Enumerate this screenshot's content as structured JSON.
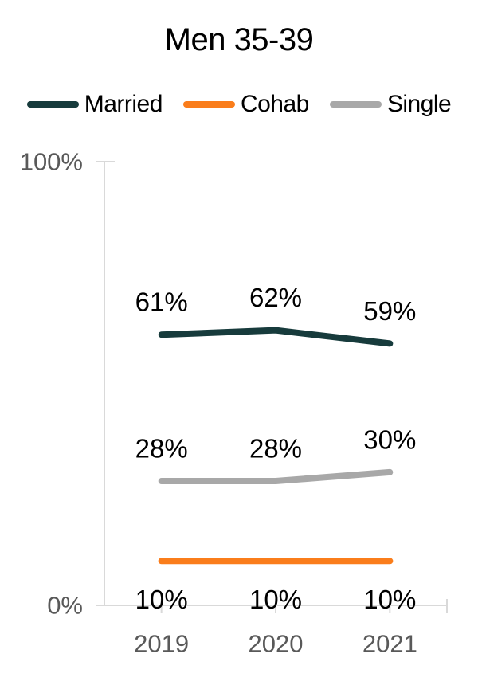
{
  "chart_data": {
    "type": "line",
    "title": "Men 35-39",
    "categories": [
      "2019",
      "2020",
      "2021"
    ],
    "series": [
      {
        "name": "Married",
        "values": [
          61,
          62,
          59
        ],
        "data_labels": [
          "61%",
          "62%",
          "59%"
        ],
        "color": "#173B3C",
        "label_position": "above"
      },
      {
        "name": "Cohab",
        "values": [
          10,
          10,
          10
        ],
        "data_labels": [
          "10%",
          "10%",
          "10%"
        ],
        "color": "#FA7D1B",
        "label_position": "below"
      },
      {
        "name": "Single",
        "values": [
          28,
          28,
          30
        ],
        "data_labels": [
          "28%",
          "28%",
          "30%"
        ],
        "color": "#A8A8A8",
        "label_position": "above"
      }
    ],
    "ylim": [
      0,
      100
    ],
    "yticks": [
      {
        "value": 100,
        "label": "100%"
      },
      {
        "value": 0,
        "label": "0%"
      }
    ],
    "xlabel": "",
    "ylabel": "",
    "grid": false,
    "legend_position": "top",
    "colors": {
      "axis": "#D9D9D9",
      "tick_label": "#595959",
      "data_label": "#000000",
      "title": "#000000",
      "legend_label": "#000000",
      "background": "#FFFFFF"
    }
  }
}
